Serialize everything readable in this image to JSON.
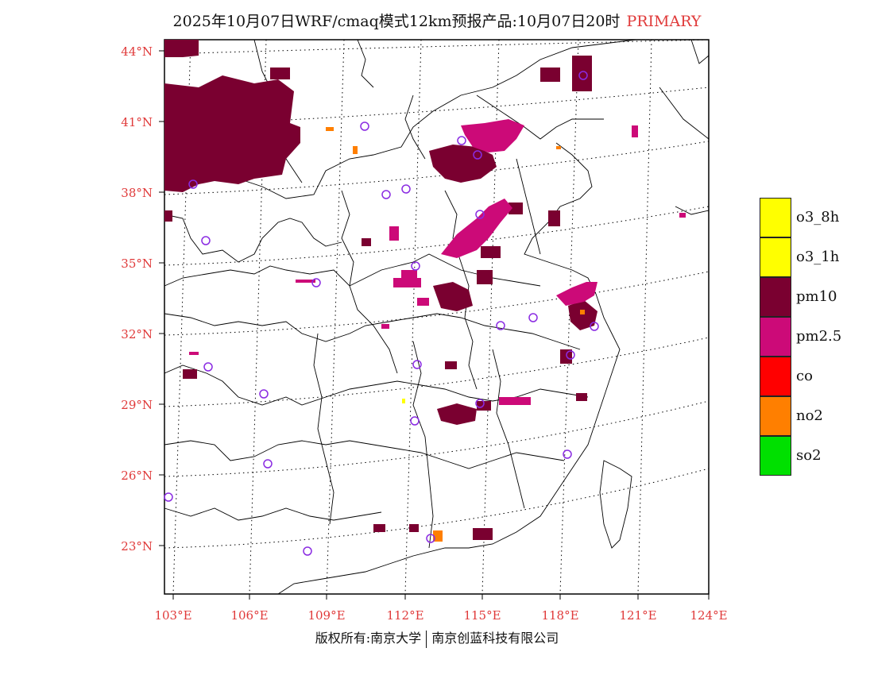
{
  "title": {
    "main": "2025年10月07日WRF/cmaq模式12km预报产品:10月07日20时",
    "tag": "PRIMARY"
  },
  "axes": {
    "lat_labels": [
      "44°N",
      "41°N",
      "38°N",
      "35°N",
      "32°N",
      "29°N",
      "26°N",
      "23°N"
    ],
    "lon_labels": [
      "103°E",
      "106°E",
      "109°E",
      "112°E",
      "115°E",
      "118°E",
      "121°E",
      "124°E"
    ]
  },
  "legend": {
    "items": [
      {
        "label": "o3_8h",
        "color": "#ffff00"
      },
      {
        "label": "o3_1h",
        "color": "#ffff00"
      },
      {
        "label": "pm10",
        "color": "#7a0030"
      },
      {
        "label": "pm2.5",
        "color": "#cc0a78"
      },
      {
        "label": "co",
        "color": "#ff0000"
      },
      {
        "label": "no2",
        "color": "#ff7f00"
      },
      {
        "label": "so2",
        "color": "#00e000"
      }
    ]
  },
  "copyright": {
    "left": "版权所有:南京大学",
    "right": "南京创蓝科技有限公司"
  },
  "colors": {
    "pm10": "#7a0030",
    "pm25": "#cc0a78",
    "no2": "#ff7f00",
    "o3": "#ffff00",
    "station": "#8a2be2",
    "axis_text": "#e03a3a"
  }
}
